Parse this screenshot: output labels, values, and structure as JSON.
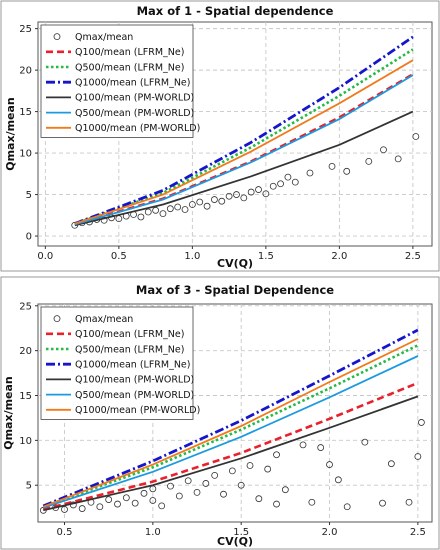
{
  "chart_data": [
    {
      "type": "scatter",
      "title": "Max of 1 - Spatial dependence",
      "xlabel": "CV(Q)",
      "ylabel": "Qmax/mean",
      "xlim": [
        -0.05,
        2.63
      ],
      "ylim": [
        -1.2,
        25.8
      ],
      "xticks": [
        0.0,
        0.5,
        1.0,
        1.5,
        2.0,
        2.5
      ],
      "xtick_labels": [
        "0.0",
        "0.5",
        "1.0",
        "1.5",
        "2.0",
        "2.5"
      ],
      "yticks": [
        0,
        5,
        10,
        15,
        20,
        25
      ],
      "ytick_labels": [
        "0",
        "5",
        "10",
        "15",
        "20",
        "25"
      ],
      "grid": true,
      "legend_position": "top-left",
      "scatter": {
        "name": "Qmax/mean",
        "points": [
          [
            0.2,
            1.3
          ],
          [
            0.25,
            1.6
          ],
          [
            0.3,
            1.7
          ],
          [
            0.35,
            2.0
          ],
          [
            0.4,
            1.9
          ],
          [
            0.45,
            2.2
          ],
          [
            0.5,
            2.1
          ],
          [
            0.55,
            2.4
          ],
          [
            0.6,
            2.6
          ],
          [
            0.65,
            2.3
          ],
          [
            0.7,
            2.9
          ],
          [
            0.75,
            3.1
          ],
          [
            0.8,
            2.7
          ],
          [
            0.85,
            3.3
          ],
          [
            0.9,
            3.5
          ],
          [
            0.95,
            3.2
          ],
          [
            1.0,
            3.8
          ],
          [
            1.05,
            4.1
          ],
          [
            1.1,
            3.6
          ],
          [
            1.15,
            4.4
          ],
          [
            1.2,
            4.2
          ],
          [
            1.25,
            4.8
          ],
          [
            1.3,
            5.0
          ],
          [
            1.35,
            4.6
          ],
          [
            1.4,
            5.3
          ],
          [
            1.45,
            5.6
          ],
          [
            1.5,
            5.1
          ],
          [
            1.55,
            6.0
          ],
          [
            1.6,
            6.3
          ],
          [
            1.65,
            7.1
          ],
          [
            1.7,
            6.5
          ],
          [
            1.8,
            7.6
          ],
          [
            1.95,
            8.4
          ],
          [
            2.05,
            7.8
          ],
          [
            2.2,
            9.0
          ],
          [
            2.3,
            10.4
          ],
          [
            2.4,
            9.3
          ],
          [
            2.52,
            12.0
          ]
        ]
      },
      "series": [
        {
          "name": "Q100/mean (LFRM_Ne)",
          "color": "#e8212b",
          "style": "dashed",
          "points": [
            [
              0.2,
              1.4
            ],
            [
              0.8,
              4.5
            ],
            [
              1.4,
              9.0
            ],
            [
              2.0,
              14.3
            ],
            [
              2.5,
              19.5
            ]
          ]
        },
        {
          "name": "Q500/mean (LFRM_Ne)",
          "color": "#22bb44",
          "style": "dotted",
          "points": [
            [
              0.2,
              1.5
            ],
            [
              0.8,
              5.2
            ],
            [
              1.4,
              10.7
            ],
            [
              2.0,
              16.9
            ],
            [
              2.5,
              22.5
            ]
          ]
        },
        {
          "name": "Q1000/mean (LFRM_Ne)",
          "color": "#1515cc",
          "style": "dashdot",
          "points": [
            [
              0.2,
              1.5
            ],
            [
              0.8,
              5.5
            ],
            [
              1.4,
              11.3
            ],
            [
              2.0,
              17.9
            ],
            [
              2.5,
              24.0
            ]
          ]
        },
        {
          "name": "Q100/mean (PM-WORLD)",
          "color": "#333333",
          "style": "solid",
          "points": [
            [
              0.2,
              1.3
            ],
            [
              0.8,
              3.8
            ],
            [
              1.4,
              7.2
            ],
            [
              2.0,
              11.0
            ],
            [
              2.5,
              15.0
            ]
          ]
        },
        {
          "name": "Q500/mean (PM-WORLD)",
          "color": "#1c9ae0",
          "style": "solid",
          "points": [
            [
              0.2,
              1.4
            ],
            [
              0.8,
              4.4
            ],
            [
              1.4,
              8.9
            ],
            [
              2.0,
              14.1
            ],
            [
              2.5,
              19.4
            ]
          ]
        },
        {
          "name": "Q1000/mean (PM-WORLD)",
          "color": "#f07a1c",
          "style": "solid",
          "points": [
            [
              0.2,
              1.5
            ],
            [
              0.8,
              5.0
            ],
            [
              1.4,
              10.2
            ],
            [
              2.0,
              16.0
            ],
            [
              2.5,
              21.2
            ]
          ]
        }
      ]
    },
    {
      "type": "scatter",
      "title": "Max of 3 - Spatial Dependence",
      "xlabel": "CV(Q)",
      "ylabel": "Qmax/mean",
      "xlim": [
        0.35,
        2.58
      ],
      "ylim": [
        0.9,
        25.2
      ],
      "xticks": [
        0.5,
        1.0,
        1.5,
        2.0,
        2.5
      ],
      "xtick_labels": [
        "0.5",
        "1.0",
        "1.5",
        "2.0",
        "2.5"
      ],
      "yticks": [
        5,
        10,
        15,
        20,
        25
      ],
      "ytick_labels": [
        "5",
        "10",
        "15",
        "20",
        "25"
      ],
      "grid": true,
      "legend_position": "top-left",
      "scatter": {
        "name": "Qmax/mean",
        "points": [
          [
            0.38,
            2.2
          ],
          [
            0.45,
            2.5
          ],
          [
            0.5,
            2.3
          ],
          [
            0.55,
            2.8
          ],
          [
            0.6,
            2.4
          ],
          [
            0.65,
            3.1
          ],
          [
            0.7,
            2.6
          ],
          [
            0.75,
            3.4
          ],
          [
            0.8,
            2.9
          ],
          [
            0.85,
            3.6
          ],
          [
            0.9,
            3.0
          ],
          [
            0.95,
            4.1
          ],
          [
            1.0,
            3.3
          ],
          [
            1.0,
            4.6
          ],
          [
            1.05,
            2.7
          ],
          [
            1.1,
            4.9
          ],
          [
            1.15,
            3.8
          ],
          [
            1.2,
            5.5
          ],
          [
            1.25,
            4.2
          ],
          [
            1.3,
            5.2
          ],
          [
            1.35,
            6.1
          ],
          [
            1.4,
            4.0
          ],
          [
            1.45,
            6.6
          ],
          [
            1.5,
            5.0
          ],
          [
            1.55,
            7.2
          ],
          [
            1.6,
            3.5
          ],
          [
            1.65,
            6.8
          ],
          [
            1.7,
            2.9
          ],
          [
            1.7,
            8.4
          ],
          [
            1.75,
            4.5
          ],
          [
            1.85,
            9.5
          ],
          [
            1.9,
            3.1
          ],
          [
            1.95,
            9.2
          ],
          [
            2.0,
            7.3
          ],
          [
            2.05,
            5.6
          ],
          [
            2.1,
            2.6
          ],
          [
            2.2,
            9.8
          ],
          [
            2.3,
            3.0
          ],
          [
            2.35,
            7.4
          ],
          [
            2.45,
            3.1
          ],
          [
            2.5,
            8.2
          ],
          [
            2.52,
            12.0
          ]
        ]
      },
      "series": [
        {
          "name": "Q100/mean (LFRM_Ne)",
          "color": "#e8212b",
          "style": "dashed",
          "points": [
            [
              0.38,
              2.3
            ],
            [
              1.0,
              5.4
            ],
            [
              1.5,
              8.6
            ],
            [
              2.0,
              12.4
            ],
            [
              2.5,
              16.4
            ]
          ]
        },
        {
          "name": "Q500/mean (LFRM_Ne)",
          "color": "#22bb44",
          "style": "dotted",
          "points": [
            [
              0.38,
              2.6
            ],
            [
              1.0,
              7.0
            ],
            [
              1.5,
              11.2
            ],
            [
              2.0,
              15.8
            ],
            [
              2.5,
              20.6
            ]
          ]
        },
        {
          "name": "Q1000/mean (LFRM_Ne)",
          "color": "#1515cc",
          "style": "dashdot",
          "points": [
            [
              0.38,
              2.7
            ],
            [
              1.0,
              7.7
            ],
            [
              1.5,
              12.2
            ],
            [
              2.0,
              17.2
            ],
            [
              2.5,
              22.3
            ]
          ]
        },
        {
          "name": "Q100/mean (PM-WORLD)",
          "color": "#333333",
          "style": "solid",
          "points": [
            [
              0.38,
              2.2
            ],
            [
              1.0,
              5.0
            ],
            [
              1.5,
              8.0
            ],
            [
              2.0,
              11.4
            ],
            [
              2.5,
              14.9
            ]
          ]
        },
        {
          "name": "Q500/mean (PM-WORLD)",
          "color": "#1c9ae0",
          "style": "solid",
          "points": [
            [
              0.38,
              2.5
            ],
            [
              1.0,
              6.5
            ],
            [
              1.5,
              10.4
            ],
            [
              2.0,
              14.8
            ],
            [
              2.5,
              19.4
            ]
          ]
        },
        {
          "name": "Q1000/mean (PM-WORLD)",
          "color": "#f07a1c",
          "style": "solid",
          "points": [
            [
              0.38,
              2.6
            ],
            [
              1.0,
              7.3
            ],
            [
              1.5,
              11.6
            ],
            [
              2.0,
              16.5
            ],
            [
              2.5,
              21.3
            ]
          ]
        }
      ]
    }
  ]
}
